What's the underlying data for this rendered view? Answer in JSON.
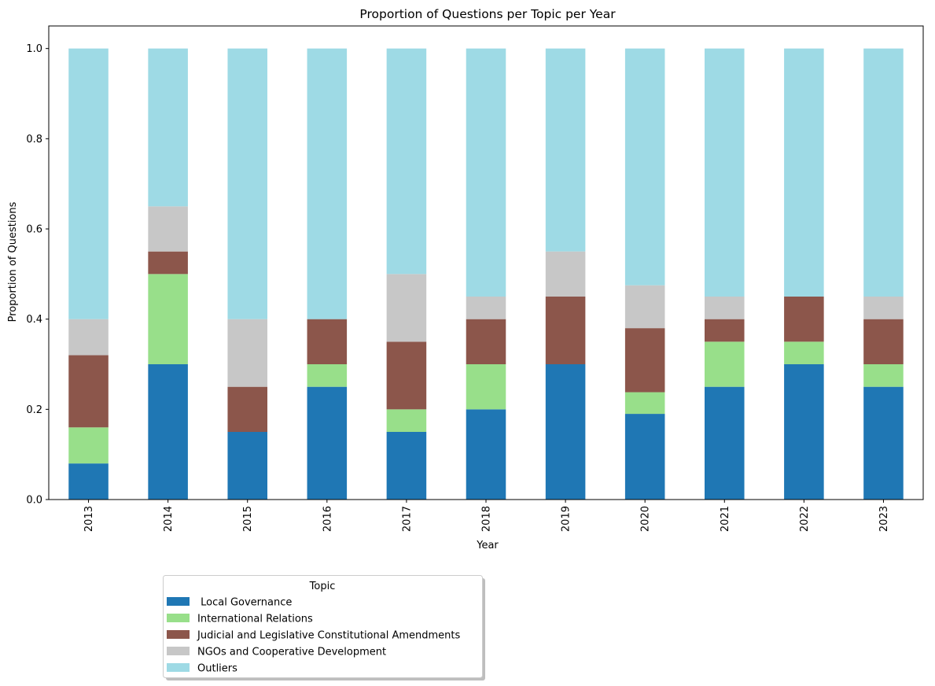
{
  "chart_data": {
    "type": "bar",
    "stacked": true,
    "title": "Proportion of Questions per Topic per Year",
    "xlabel": "Year",
    "ylabel": "Proportion of Questions",
    "ylim": [
      0,
      1.05
    ],
    "yticks": [
      "0.0",
      "0.2",
      "0.4",
      "0.6",
      "0.8",
      "1.0"
    ],
    "grid": false,
    "categories": [
      "2013",
      "2014",
      "2015",
      "2016",
      "2017",
      "2018",
      "2019",
      "2020",
      "2021",
      "2022",
      "2023"
    ],
    "series": [
      {
        "name": " Local Governance",
        "color": "#1f77b4",
        "values": [
          0.08,
          0.3,
          0.15,
          0.25,
          0.15,
          0.2,
          0.3,
          0.19,
          0.25,
          0.3,
          0.25
        ]
      },
      {
        "name": "International Relations",
        "color": "#98df8a",
        "values": [
          0.08,
          0.2,
          0.0,
          0.05,
          0.05,
          0.1,
          0.0,
          0.048,
          0.1,
          0.05,
          0.05
        ]
      },
      {
        "name": "Judicial and Legislative Constitutional Amendments",
        "color": "#8c564b",
        "values": [
          0.16,
          0.05,
          0.1,
          0.1,
          0.15,
          0.1,
          0.15,
          0.142,
          0.05,
          0.1,
          0.1
        ]
      },
      {
        "name": "NGOs and Cooperative Development",
        "color": "#c7c7c7",
        "values": [
          0.08,
          0.1,
          0.15,
          0.0,
          0.15,
          0.05,
          0.1,
          0.095,
          0.05,
          0.0,
          0.05
        ]
      },
      {
        "name": "Outliers",
        "color": "#9edae5",
        "values": [
          0.6,
          0.35,
          0.6,
          0.6,
          0.5,
          0.55,
          0.45,
          0.525,
          0.55,
          0.55,
          0.55
        ]
      }
    ],
    "legend": {
      "title": "Topic",
      "placement": "bottom-left, below plot"
    }
  }
}
